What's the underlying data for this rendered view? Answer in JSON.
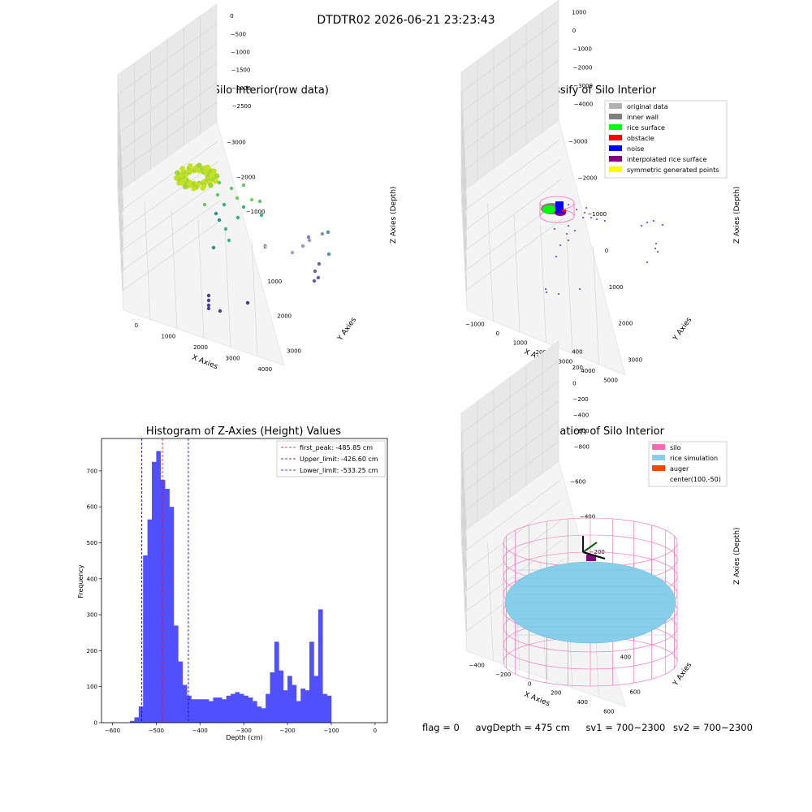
{
  "suptitle": "DTDTR02 2026-06-21 23:23:43",
  "panels": {
    "raw": {
      "title": "3D Plot of Silo Interior(row data)",
      "xlabel": "X Axies",
      "ylabel": "Y Axies",
      "zlabel": "Z Axies (Depth)",
      "xticks": [
        "0",
        "1000",
        "2000",
        "3000",
        "4000"
      ],
      "yticks": [
        "−3000",
        "−2000",
        "−1000",
        "0",
        "1000",
        "2000",
        "3000"
      ],
      "zticks": [
        "0",
        "−500",
        "−1000",
        "−1500",
        "−2000",
        "−2500"
      ]
    },
    "classify": {
      "title": "3D classify of Silo Interior",
      "xlabel": "X Axies",
      "ylabel": "Y Axies",
      "zlabel": "Z Axies (Depth)",
      "xticks": [
        "−1000",
        "0",
        "1000",
        "2000",
        "3000",
        "4000",
        "5000"
      ],
      "yticks": [
        "−3000",
        "−2000",
        "−1000",
        "0",
        "1000",
        "2000",
        "3000"
      ],
      "zticks": [
        "1000",
        "0",
        "−1000",
        "−2000",
        "−3000",
        "−4000"
      ],
      "legend": [
        {
          "label": "original data",
          "color": "#b0b0b0"
        },
        {
          "label": "inner wall",
          "color": "#808080"
        },
        {
          "label": "rice surface",
          "color": "#00ff00"
        },
        {
          "label": "obstacle",
          "color": "#ff0000"
        },
        {
          "label": "noise",
          "color": "#0000ff"
        },
        {
          "label": "interpolated rice surface",
          "color": "#800080"
        },
        {
          "label": "symmetric generated points",
          "color": "#ffff00"
        }
      ]
    },
    "simulation": {
      "title": "3D simulation of Silo Interior",
      "xlabel": "X Axies",
      "ylabel": "Y Axies",
      "zlabel": "Z Axies (Depth)",
      "xticks": [
        "−400",
        "−200",
        "0",
        "200",
        "400",
        "600"
      ],
      "yticks": [
        "−600",
        "−400",
        "−200",
        "0",
        "200",
        "400",
        "600"
      ],
      "zticks": [
        "400",
        "200",
        "0",
        "−200",
        "−400",
        "−600",
        "−800"
      ],
      "legend": [
        {
          "label": "silo",
          "color": "#ff69b4"
        },
        {
          "label": "rice simulation",
          "color": "#87ceeb"
        },
        {
          "label": "auger",
          "color": "#ff4500"
        },
        {
          "label": "center(100,-50)",
          "color": ""
        }
      ]
    }
  },
  "chart_data": [
    {
      "type": "scatter",
      "title": "3D Plot of Silo Interior(row data)",
      "xlabel": "X Axies",
      "ylabel": "Y Axies",
      "zlabel": "Z Axies (Depth)",
      "xlim": [
        -800,
        4500
      ],
      "ylim": [
        -3500,
        3500
      ],
      "zlim": [
        -2900,
        100
      ]
    },
    {
      "type": "scatter",
      "title": "3D classify of Silo Interior",
      "xlabel": "X Axies",
      "ylabel": "Y Axies",
      "zlabel": "Z Axies (Depth)",
      "xlim": [
        -1500,
        5200
      ],
      "ylim": [
        -3500,
        3500
      ],
      "zlim": [
        -4500,
        1200
      ],
      "series": [
        {
          "name": "original data"
        },
        {
          "name": "inner wall"
        },
        {
          "name": "rice surface"
        },
        {
          "name": "obstacle"
        },
        {
          "name": "noise"
        },
        {
          "name": "interpolated rice surface"
        },
        {
          "name": "symmetric generated points"
        }
      ]
    },
    {
      "type": "bar",
      "title": "Histogram of Z-Axies (Height) Values",
      "xlabel": "Depth (cm)",
      "ylabel": "Frequency",
      "xlim": [
        -625,
        28
      ],
      "ylim": [
        0,
        790
      ],
      "xticks": [
        -600,
        -500,
        -400,
        -300,
        -200,
        -100,
        0
      ],
      "yticks": [
        0,
        100,
        200,
        300,
        400,
        500,
        600,
        700
      ],
      "bin_start": -560,
      "bin_width": 10,
      "values": [
        5,
        15,
        45,
        465,
        565,
        725,
        755,
        675,
        650,
        600,
        270,
        170,
        105,
        75,
        65,
        65,
        65,
        65,
        60,
        70,
        70,
        65,
        75,
        80,
        85,
        80,
        75,
        70,
        60,
        45,
        40,
        80,
        140,
        225,
        145,
        90,
        130,
        105,
        60,
        95,
        90,
        225,
        130,
        315,
        80,
        75
      ],
      "vlines": [
        {
          "name": "first_peak: -485.85 cm",
          "x": -485.85,
          "color": "#ff0000"
        },
        {
          "name": "Upper_limit: -426.60 cm",
          "x": -426.6,
          "color": "#0000cc"
        },
        {
          "name": "Lower_limit: -533.25 cm",
          "x": -533.25,
          "color": "#0000cc"
        }
      ]
    },
    {
      "type": "scatter",
      "title": "3D simulation of Silo Interior",
      "xlabel": "X Axies",
      "ylabel": "Y Axies",
      "zlabel": "Z Axies (Depth)",
      "xlim": [
        -500,
        700
      ],
      "ylim": [
        -700,
        700
      ],
      "zlim": [
        -900,
        450
      ],
      "series": [
        {
          "name": "silo"
        },
        {
          "name": "rice simulation"
        },
        {
          "name": "auger"
        },
        {
          "name": "center(100,-50)"
        }
      ]
    }
  ],
  "histogram": {
    "title": "Histogram of Z-Axies (Height) Values",
    "xlabel": "Depth (cm)",
    "ylabel": "Frequency",
    "xticks": [
      "−600",
      "−500",
      "−400",
      "−300",
      "−200",
      "−100",
      "0"
    ],
    "yticks": [
      "0",
      "100",
      "200",
      "300",
      "400",
      "500",
      "600",
      "700"
    ]
  },
  "status": {
    "flag": "flag = 0",
    "avg": "avgDepth = 475 cm",
    "sv1": "sv1 = 700~2300",
    "sv2": "sv2 = 700~2300"
  },
  "colors": {
    "hist_bar": "#5050ff",
    "pane": "#f2f2f2",
    "silo": "#ff69b4",
    "rice": "#87ceeb"
  }
}
